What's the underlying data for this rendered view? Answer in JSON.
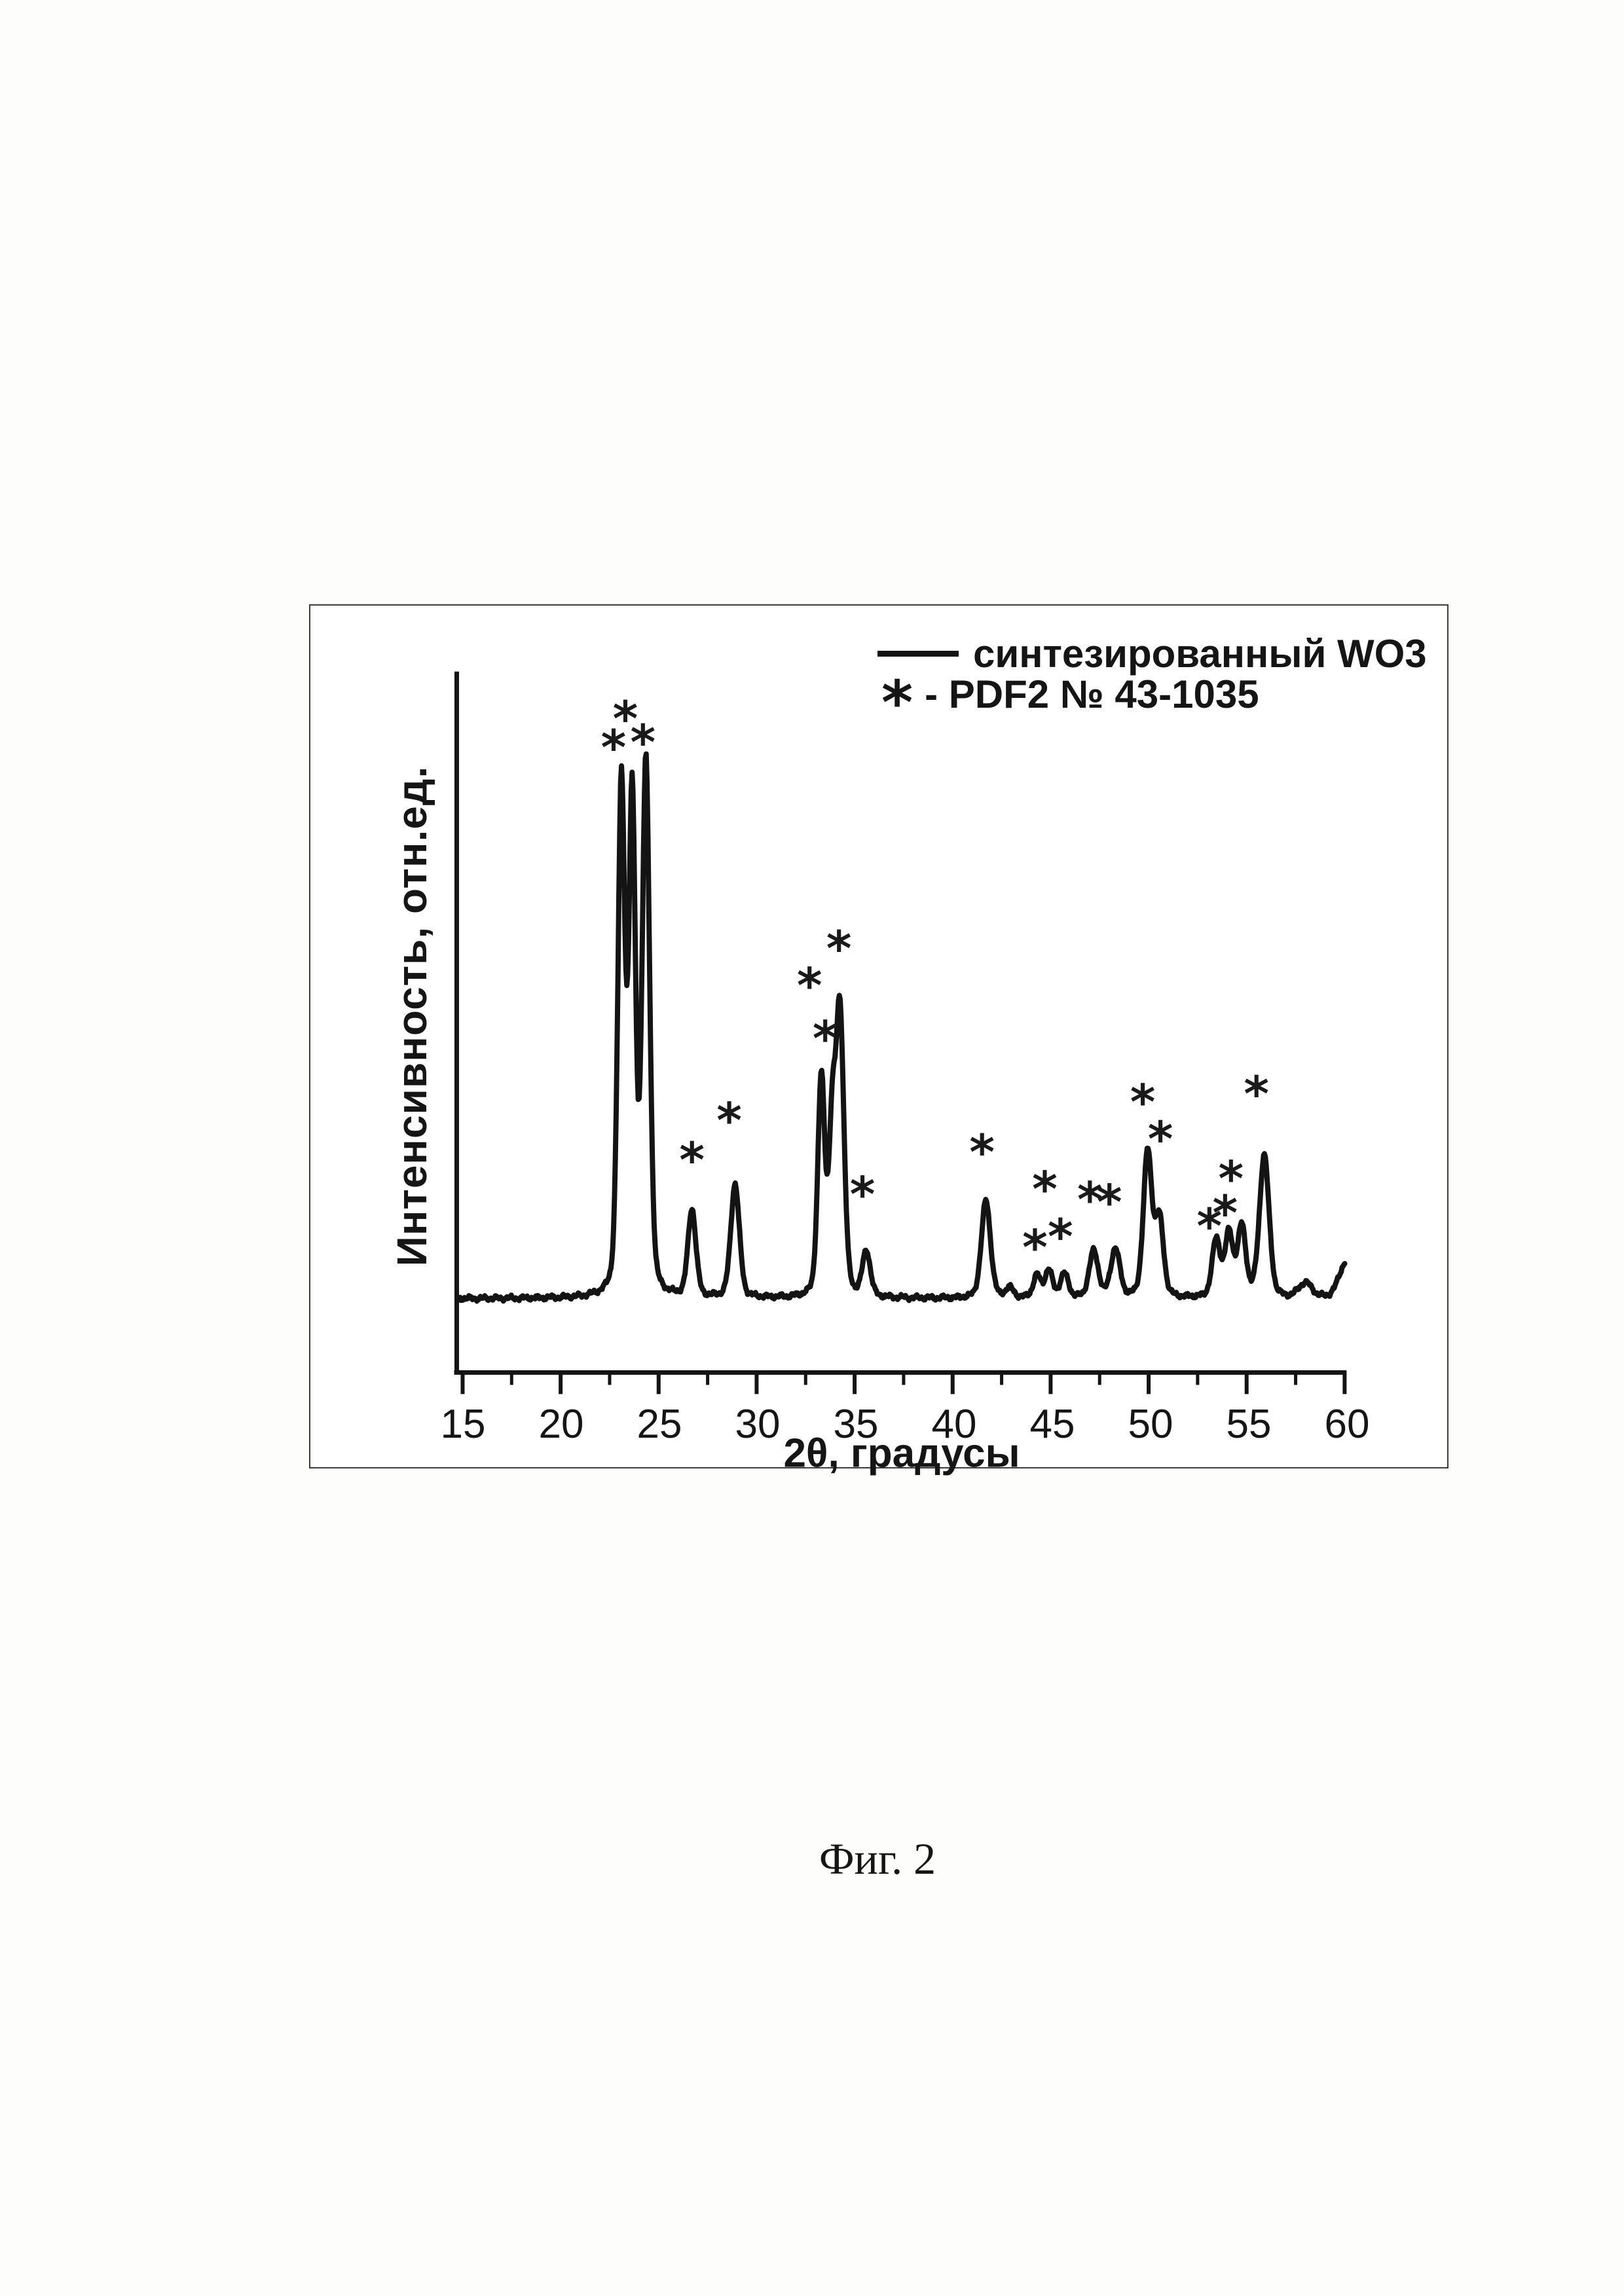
{
  "figure": {
    "caption": "Фиг. 2"
  },
  "legend": {
    "series_label": "синтезированный WO3",
    "marker_symbol": "*",
    "marker_label": "- PDF2 № 43-1035"
  },
  "axes": {
    "x_label": "2θ, градусы",
    "y_label": "Интенсивность, отн.ед.",
    "x_ticks": [
      15,
      20,
      25,
      30,
      35,
      40,
      45,
      50,
      55,
      60
    ],
    "x_minor_tick_step": 2.5,
    "x_range": [
      15,
      60
    ]
  },
  "colors": {
    "curve": "#141414",
    "axis": "#141414",
    "marker": "#1a1a1a",
    "frame": "#3c3c3c"
  },
  "chart_data": {
    "type": "line",
    "title": "",
    "xlabel": "2θ, градусы",
    "ylabel": "Интенсивность, отн.ед.",
    "xlim": [
      15,
      60
    ],
    "ylim_relative_units": [
      0,
      115
    ],
    "grid": false,
    "legend_position": "top-right",
    "series": [
      {
        "name": "синтезированный WO3",
        "style": "solid",
        "baseline_intensity": 1.0,
        "peaks": [
          {
            "two_theta": 23.1,
            "intensity": 96.0,
            "fwhm": 0.42
          },
          {
            "two_theta": 23.65,
            "intensity": 92.0,
            "fwhm": 0.4
          },
          {
            "two_theta": 24.35,
            "intensity": 100.0,
            "fwhm": 0.45
          },
          {
            "two_theta": 26.7,
            "intensity": 16.5,
            "fwhm": 0.48
          },
          {
            "two_theta": 28.9,
            "intensity": 21.5,
            "fwhm": 0.52
          },
          {
            "two_theta": 33.3,
            "intensity": 41.0,
            "fwhm": 0.42
          },
          {
            "two_theta": 33.85,
            "intensity": 29.0,
            "fwhm": 0.4
          },
          {
            "two_theta": 34.25,
            "intensity": 53.5,
            "fwhm": 0.48
          },
          {
            "two_theta": 35.6,
            "intensity": 8.5,
            "fwhm": 0.48
          },
          {
            "two_theta": 41.7,
            "intensity": 18.5,
            "fwhm": 0.55
          },
          {
            "two_theta": 42.9,
            "intensity": 1.8,
            "fwhm": 0.5
          },
          {
            "two_theta": 44.3,
            "intensity": 4.2,
            "fwhm": 0.45
          },
          {
            "two_theta": 44.9,
            "intensity": 5.2,
            "fwhm": 0.45
          },
          {
            "two_theta": 45.7,
            "intensity": 4.5,
            "fwhm": 0.5
          },
          {
            "two_theta": 47.2,
            "intensity": 8.8,
            "fwhm": 0.55
          },
          {
            "two_theta": 48.3,
            "intensity": 9.2,
            "fwhm": 0.55
          },
          {
            "two_theta": 49.95,
            "intensity": 27.5,
            "fwhm": 0.52
          },
          {
            "two_theta": 50.55,
            "intensity": 14.5,
            "fwhm": 0.5
          },
          {
            "two_theta": 53.45,
            "intensity": 10.8,
            "fwhm": 0.5
          },
          {
            "two_theta": 54.1,
            "intensity": 11.8,
            "fwhm": 0.48
          },
          {
            "two_theta": 54.75,
            "intensity": 13.2,
            "fwhm": 0.5
          },
          {
            "two_theta": 55.9,
            "intensity": 27.0,
            "fwhm": 0.58
          },
          {
            "two_theta": 58.0,
            "intensity": 2.8,
            "fwhm": 0.8
          },
          {
            "two_theta": 60.1,
            "intensity": 7.0,
            "fwhm": 0.9
          }
        ]
      }
    ],
    "pdf_reference_markers": {
      "symbol": "*",
      "card": "PDF2 № 43-1035",
      "points": [
        {
          "two_theta": 22.7,
          "intensity": 105.5
        },
        {
          "two_theta": 23.3,
          "intensity": 111.0
        },
        {
          "two_theta": 24.2,
          "intensity": 106.5
        },
        {
          "two_theta": 26.7,
          "intensity": 27.5
        },
        {
          "two_theta": 28.6,
          "intensity": 35.0
        },
        {
          "two_theta": 32.7,
          "intensity": 60.5
        },
        {
          "two_theta": 33.5,
          "intensity": 50.5
        },
        {
          "two_theta": 34.2,
          "intensity": 67.5
        },
        {
          "two_theta": 35.4,
          "intensity": 21.0
        },
        {
          "two_theta": 41.5,
          "intensity": 29.0
        },
        {
          "two_theta": 44.2,
          "intensity": 11.0
        },
        {
          "two_theta": 44.7,
          "intensity": 22.0
        },
        {
          "two_theta": 45.5,
          "intensity": 13.0
        },
        {
          "two_theta": 47.0,
          "intensity": 20.0
        },
        {
          "two_theta": 48.0,
          "intensity": 19.5
        },
        {
          "two_theta": 49.7,
          "intensity": 38.5
        },
        {
          "two_theta": 50.6,
          "intensity": 31.5
        },
        {
          "two_theta": 53.1,
          "intensity": 15.0
        },
        {
          "two_theta": 53.9,
          "intensity": 17.5
        },
        {
          "two_theta": 54.2,
          "intensity": 24.0
        },
        {
          "two_theta": 55.5,
          "intensity": 40.0
        }
      ]
    }
  }
}
